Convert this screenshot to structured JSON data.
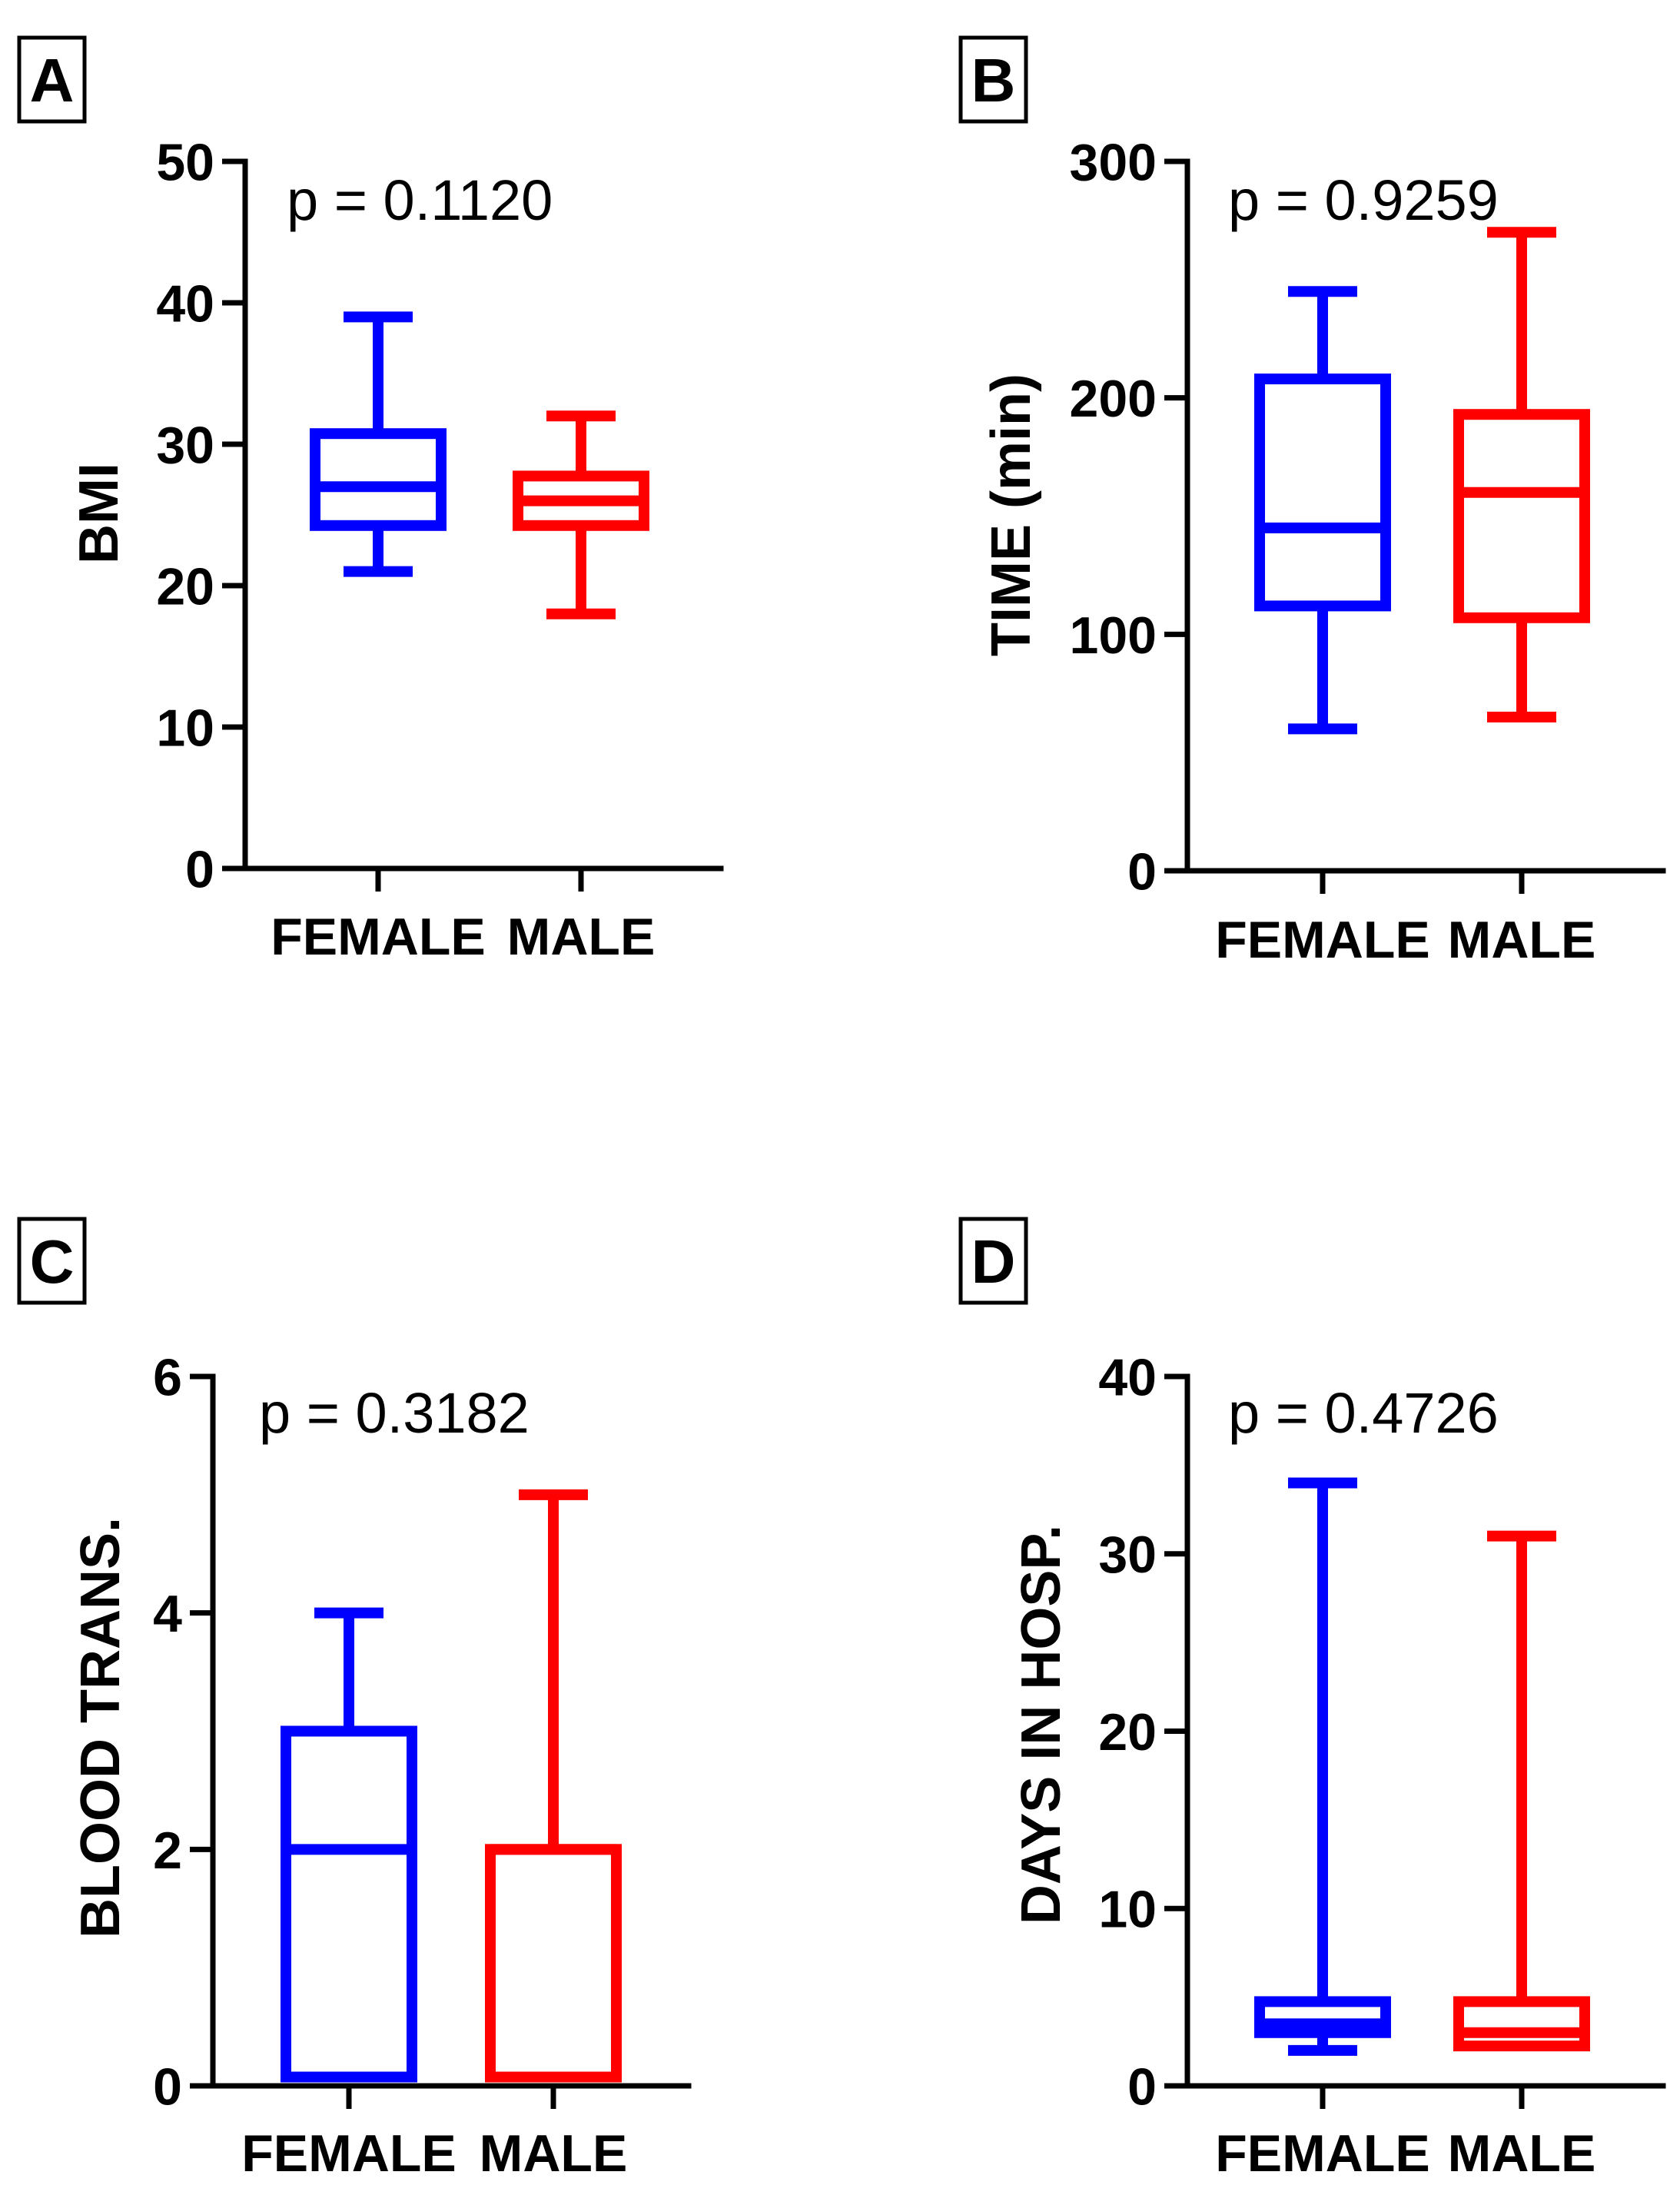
{
  "figure": {
    "background": "#FFFFFF",
    "axis_color": "#000000"
  },
  "chart_data": [
    {
      "panel": "A",
      "type": "box",
      "annotation": "p = 0.1120",
      "ylabel": "BMI",
      "categories": [
        "FEMALE",
        "MALE"
      ],
      "ylim": [
        0,
        50
      ],
      "yticks": [
        0,
        10,
        20,
        30,
        40,
        50
      ],
      "grid": false,
      "boxes": [
        {
          "color": "#0000FF",
          "min": 21,
          "q1": 24.25,
          "median": 27,
          "q3": 30.75,
          "max": 39
        },
        {
          "color": "#FF0000",
          "min": 18,
          "q1": 24.25,
          "median": 26,
          "q3": 27.75,
          "max": 32
        }
      ]
    },
    {
      "panel": "B",
      "type": "box",
      "annotation": "p = 0.9259",
      "ylabel": "TIME (min)",
      "categories": [
        "FEMALE",
        "MALE"
      ],
      "ylim": [
        0,
        300
      ],
      "yticks": [
        0,
        100,
        200,
        300
      ],
      "grid": false,
      "boxes": [
        {
          "color": "#0000FF",
          "min": 60,
          "q1": 112,
          "median": 145,
          "q3": 208,
          "max": 245
        },
        {
          "color": "#FF0000",
          "min": 65,
          "q1": 107,
          "median": 160,
          "q3": 193,
          "max": 270
        }
      ]
    },
    {
      "panel": "C",
      "type": "box",
      "annotation": "p = 0.3182",
      "ylabel": "BLOOD TRANS.",
      "categories": [
        "FEMALE",
        "MALE"
      ],
      "ylim": [
        0,
        6
      ],
      "yticks": [
        0,
        2,
        4,
        6
      ],
      "grid": false,
      "boxes": [
        {
          "color": "#0000FF",
          "min": 0,
          "q1": 0,
          "median": 2,
          "q3": 3,
          "max": 4
        },
        {
          "color": "#FF0000",
          "min": 0,
          "q1": 0,
          "median": 2,
          "q3": 2,
          "max": 5
        }
      ]
    },
    {
      "panel": "D",
      "type": "box",
      "annotation": "p = 0.4726",
      "ylabel": "DAYS IN HOSP.",
      "categories": [
        "FEMALE",
        "MALE"
      ],
      "ylim": [
        0,
        40
      ],
      "yticks": [
        0,
        10,
        20,
        30,
        40
      ],
      "grid": false,
      "boxes": [
        {
          "color": "#0000FF",
          "min": 2,
          "q1": 3,
          "median": 3.5,
          "q3": 4.75,
          "max": 34
        },
        {
          "color": "#FF0000",
          "min": 2.25,
          "q1": 2.25,
          "median": 3,
          "q3": 4.75,
          "max": 31
        }
      ]
    }
  ]
}
